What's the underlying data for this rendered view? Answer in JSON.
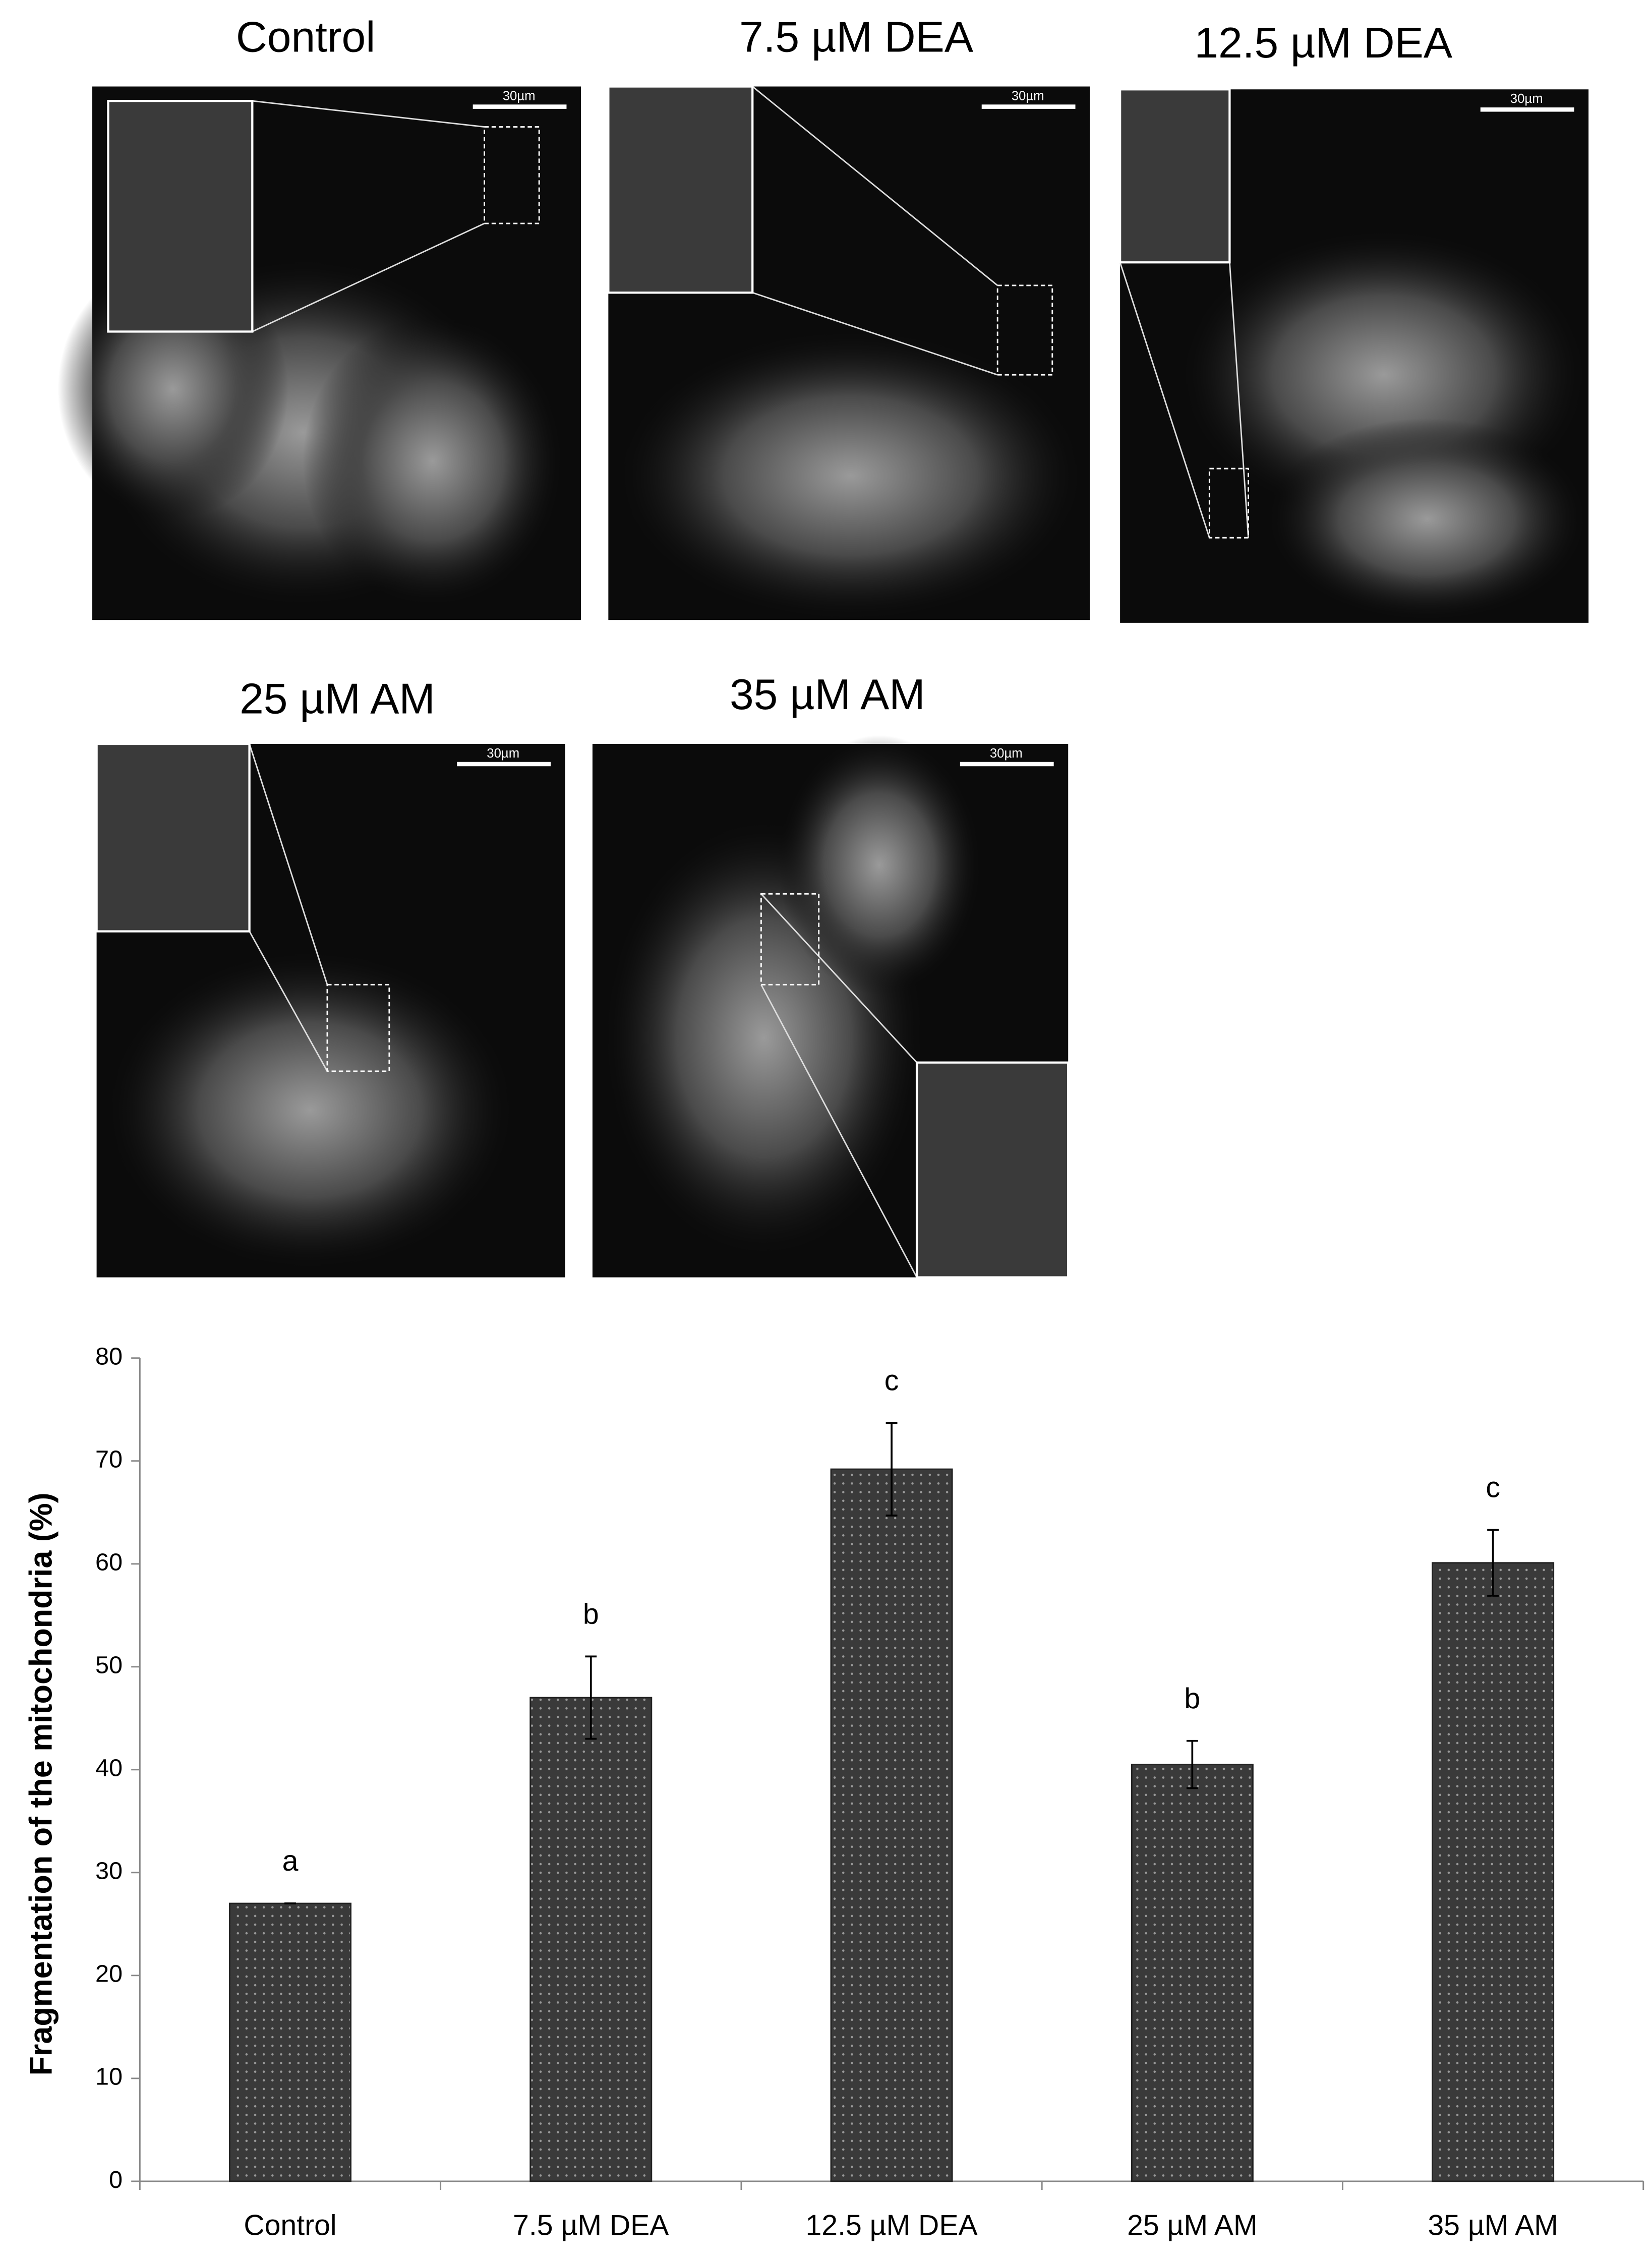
{
  "panels": [
    {
      "title": "Control",
      "scale_bar": "30µm"
    },
    {
      "title": "7.5 µM DEA",
      "scale_bar": "30µm"
    },
    {
      "title": "12.5 µM DEA",
      "scale_bar": "30µm"
    },
    {
      "title": "25 µM AM",
      "scale_bar": "30µm"
    },
    {
      "title": "35 µM AM",
      "scale_bar": "30µm"
    }
  ],
  "chart_data": {
    "type": "bar",
    "y_label": "Fragmentation of the mitochondria (%)",
    "categories": [
      "Control",
      "7.5 µM DEA",
      "12.5 µM DEA",
      "25 µM AM",
      "35 µM AM"
    ],
    "values": [
      27,
      47,
      69.2,
      40.5,
      60.1
    ],
    "errors": [
      0,
      4,
      4.5,
      2.3,
      3.2
    ],
    "annotations": [
      "a",
      "b",
      "c",
      "b",
      "c"
    ],
    "color": "#3a3a3a",
    "ylim": [
      0,
      80
    ],
    "yticks": [
      0,
      10,
      20,
      30,
      40,
      50,
      60,
      70,
      80
    ],
    "grid": false
  }
}
